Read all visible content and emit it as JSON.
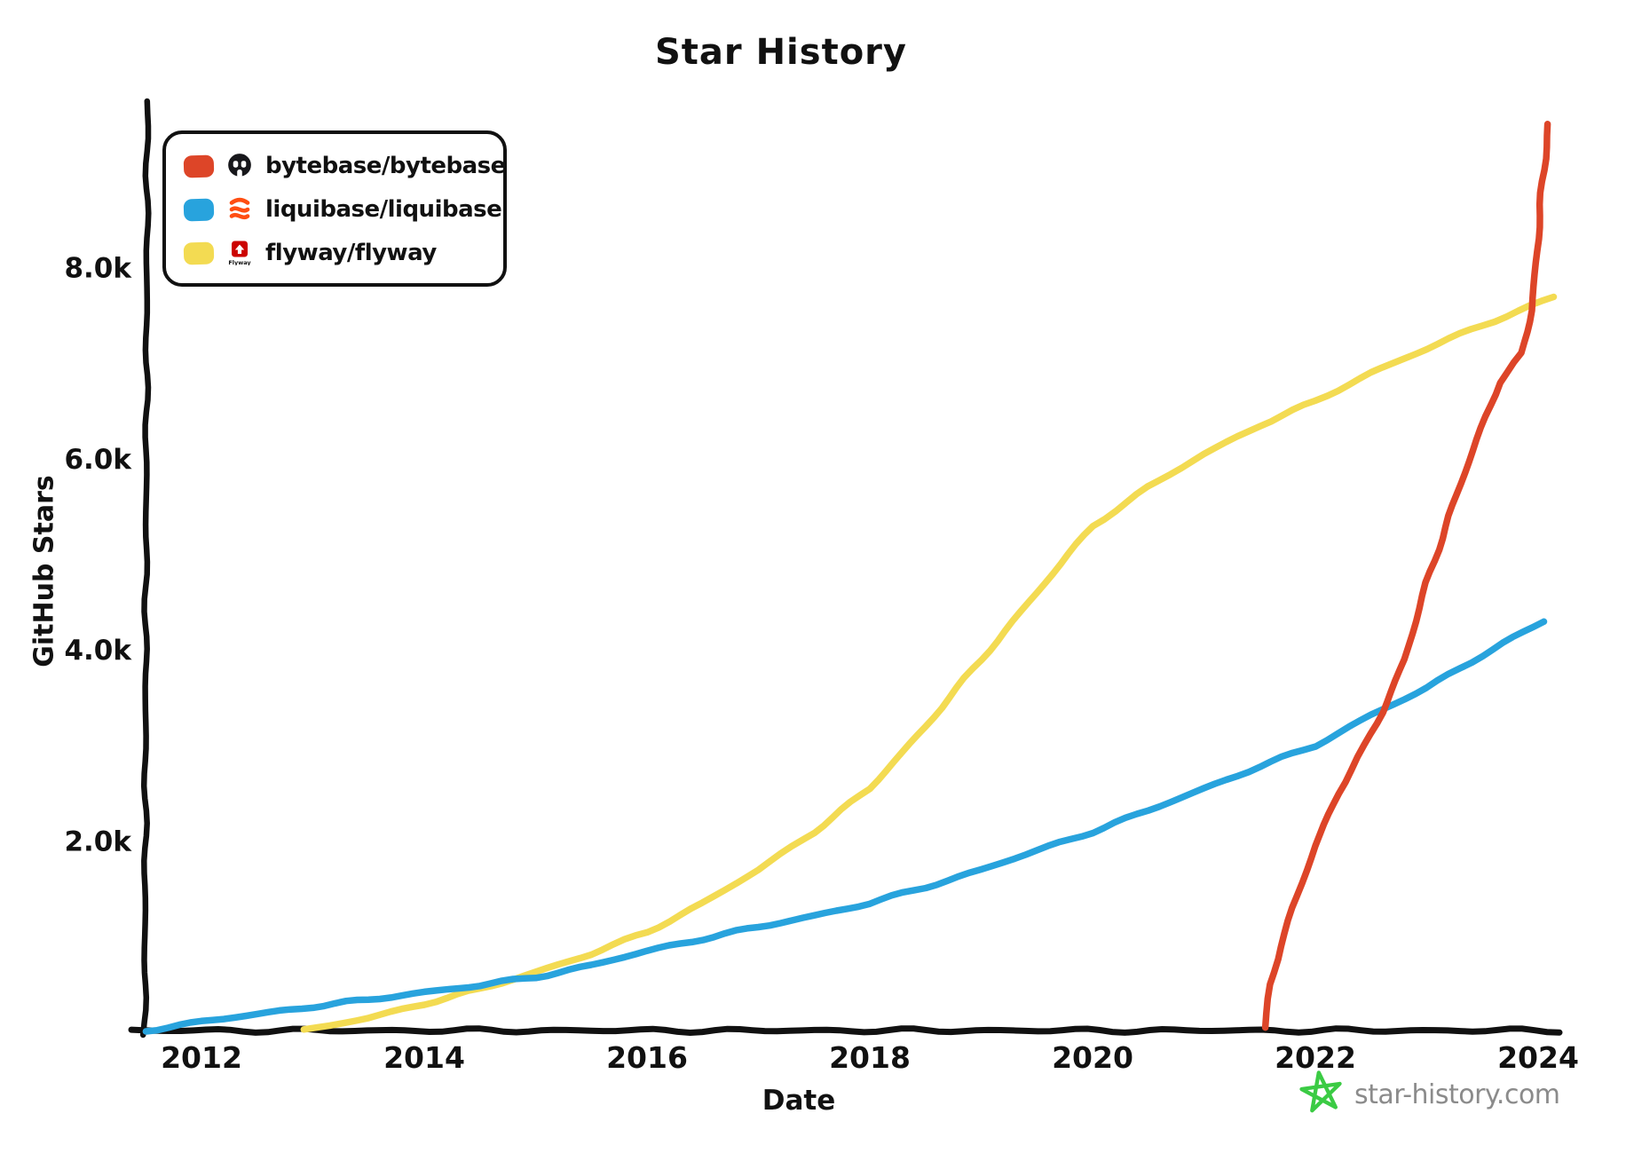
{
  "chart_data": {
    "type": "line",
    "title": "Star History",
    "xlabel": "Date",
    "ylabel": "GitHub Stars",
    "grid": false,
    "legend_position": "top-left",
    "axis_color": "#111111",
    "x_ticks": [
      2012,
      2014,
      2016,
      2018,
      2020,
      2022,
      2024
    ],
    "y_ticks": [
      {
        "label": "2.0k",
        "value": 2000
      },
      {
        "label": "4.0k",
        "value": 4000
      },
      {
        "label": "6.0k",
        "value": 6000
      },
      {
        "label": "8.0k",
        "value": 8000
      }
    ],
    "xlim": [
      2011.45,
      2024.25
    ],
    "ylim": [
      0,
      9800
    ],
    "series": [
      {
        "name": "bytebase/bytebase",
        "color": "#dd4528",
        "icon": "bytebase-logo",
        "points": [
          [
            2021.55,
            50
          ],
          [
            2021.6,
            500
          ],
          [
            2021.68,
            900
          ],
          [
            2021.8,
            1300
          ],
          [
            2022.0,
            1950
          ],
          [
            2022.2,
            2500
          ],
          [
            2022.45,
            3000
          ],
          [
            2022.6,
            3350
          ],
          [
            2022.8,
            3900
          ],
          [
            2023.0,
            4700
          ],
          [
            2023.2,
            5400
          ],
          [
            2023.45,
            6200
          ],
          [
            2023.65,
            6800
          ],
          [
            2023.86,
            7100
          ],
          [
            2023.94,
            7550
          ],
          [
            2024.0,
            8300
          ],
          [
            2024.04,
            8900
          ],
          [
            2024.09,
            9500
          ]
        ]
      },
      {
        "name": "liquibase/liquibase",
        "color": "#28a3dd",
        "icon": "liquibase-logo",
        "points": [
          [
            2011.5,
            20
          ],
          [
            2012,
            110
          ],
          [
            2012.5,
            190
          ],
          [
            2013,
            270
          ],
          [
            2013.5,
            340
          ],
          [
            2014,
            420
          ],
          [
            2014.5,
            490
          ],
          [
            2015,
            580
          ],
          [
            2015.5,
            700
          ],
          [
            2016,
            850
          ],
          [
            2016.5,
            980
          ],
          [
            2017,
            1100
          ],
          [
            2017.5,
            1220
          ],
          [
            2018,
            1350
          ],
          [
            2018.5,
            1520
          ],
          [
            2019,
            1700
          ],
          [
            2019.5,
            1900
          ],
          [
            2020,
            2100
          ],
          [
            2020.5,
            2320
          ],
          [
            2021,
            2550
          ],
          [
            2021.5,
            2780
          ],
          [
            2022,
            3000
          ],
          [
            2022.5,
            3320
          ],
          [
            2023,
            3600
          ],
          [
            2023.5,
            3950
          ],
          [
            2024.05,
            4300
          ]
        ]
      },
      {
        "name": "flyway/flyway",
        "color": "#f3db52",
        "icon": "flyway-logo",
        "icon_caption": "Flyway",
        "points": [
          [
            2012.92,
            20
          ],
          [
            2013.5,
            150
          ],
          [
            2014,
            300
          ],
          [
            2014.5,
            450
          ],
          [
            2015,
            630
          ],
          [
            2015.5,
            820
          ],
          [
            2016,
            1050
          ],
          [
            2016.5,
            1350
          ],
          [
            2017,
            1700
          ],
          [
            2017.5,
            2100
          ],
          [
            2018,
            2550
          ],
          [
            2018.5,
            3200
          ],
          [
            2019,
            3900
          ],
          [
            2019.5,
            4600
          ],
          [
            2020,
            5300
          ],
          [
            2020.5,
            5700
          ],
          [
            2021,
            6050
          ],
          [
            2021.5,
            6350
          ],
          [
            2022,
            6600
          ],
          [
            2022.5,
            6900
          ],
          [
            2023,
            7150
          ],
          [
            2023.5,
            7400
          ],
          [
            2024.14,
            7690
          ]
        ]
      }
    ]
  },
  "watermark": {
    "text": "star-history.com",
    "icon": "star-icon",
    "text_color": "#8b8b8b",
    "star_color": "#3bcb44"
  }
}
